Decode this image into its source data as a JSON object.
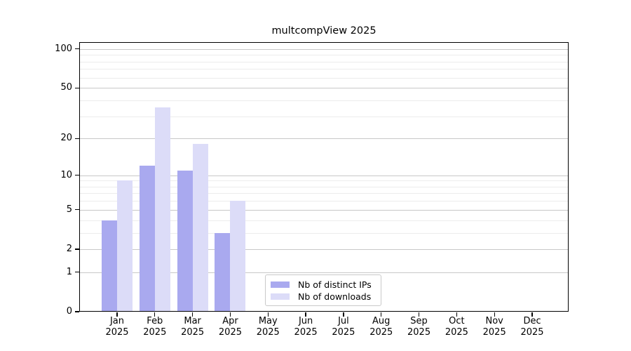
{
  "chart_data": {
    "type": "bar",
    "title": "multcompView 2025",
    "categories": [
      "Jan 2025",
      "Feb 2025",
      "Mar 2025",
      "Apr 2025",
      "May 2025",
      "Jun 2025",
      "Jul 2025",
      "Aug 2025",
      "Sep 2025",
      "Oct 2025",
      "Nov 2025",
      "Dec 2025"
    ],
    "series": [
      {
        "name": "Nb of distinct IPs",
        "color": "#a9a9ef",
        "values": [
          4,
          12,
          11,
          3,
          0,
          0,
          0,
          0,
          0,
          0,
          0,
          0
        ]
      },
      {
        "name": "Nb of downloads",
        "color": "#dcdcf8",
        "values": [
          9,
          35,
          18,
          6,
          0,
          0,
          0,
          0,
          0,
          0,
          0,
          0
        ]
      }
    ],
    "xlabel": "",
    "ylabel": "",
    "yscale": "log1p",
    "ylim": [
      0,
      113
    ],
    "yticks": [
      0,
      1,
      2,
      5,
      10,
      20,
      50,
      100
    ],
    "yticks_minor": [
      3,
      4,
      6,
      7,
      8,
      9,
      30,
      40,
      60,
      70,
      80,
      90
    ],
    "grid": true,
    "legend_position": "inside lower center"
  },
  "colors": {
    "background": "#ffffff",
    "axis": "#000000",
    "major_grid": "#c8c8c8",
    "minor_grid": "#ececec",
    "legend_border": "#c9c9c9",
    "text": "#000000"
  }
}
